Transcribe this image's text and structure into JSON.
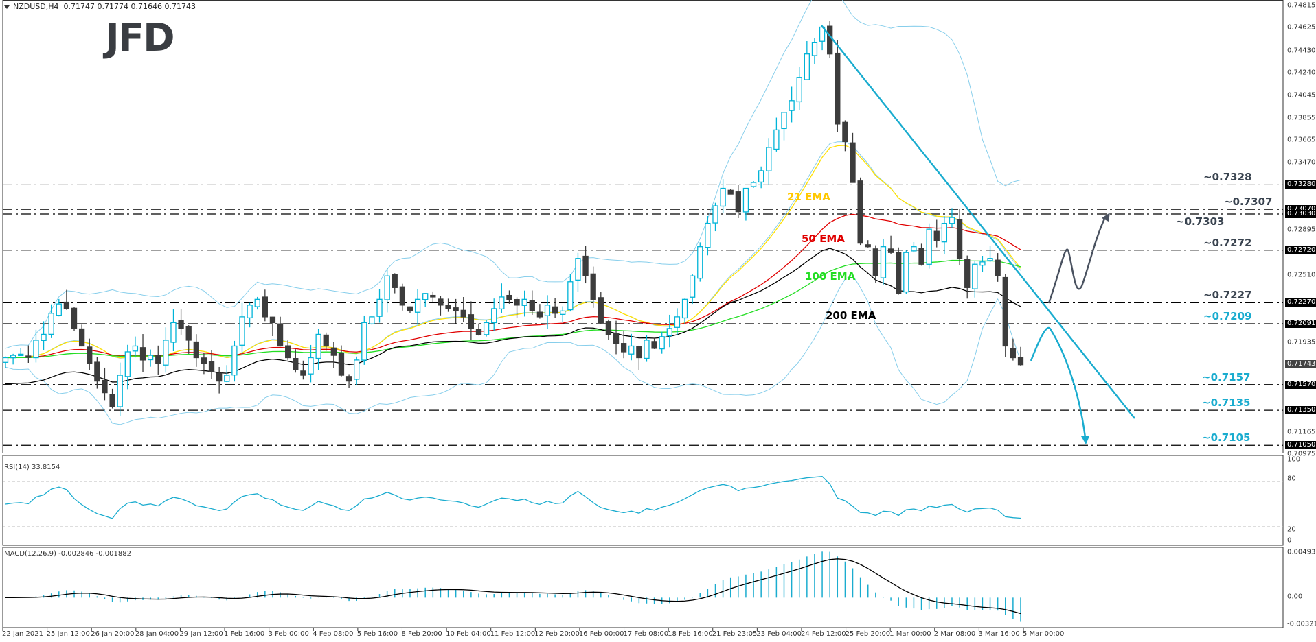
{
  "header": {
    "symbol": "NZDUSD,H4",
    "ohlc": "0.71747 0.71774 0.71646 0.71743"
  },
  "logo": "JFD",
  "colors": {
    "bull": "#00b4d8",
    "bear": "#3c3c3c",
    "bollinger": "#87ceeb",
    "ema21": "#ffe000",
    "ema50": "#e00000",
    "ema100": "#22dd22",
    "ema200": "#000000",
    "trendline": "#1aaccf",
    "level_dark": "#3a4450",
    "level_blue": "#1aaccf",
    "rsi": "#1aaccf",
    "macd_hist": "#1aaccf",
    "macd_signal": "#000000"
  },
  "indicators": {
    "rsi_label": "RSI(14) 33.8154",
    "macd_label": "MACD(12,26,9) -0.002846 -0.001882"
  },
  "ema_labels": {
    "ema21": "21 EMA",
    "ema50": "50 EMA",
    "ema100": "100 EMA",
    "ema200": "200 EMA"
  },
  "price_axis": {
    "ticks": [
      "0.74815",
      "0.74625",
      "0.74430",
      "0.74240",
      "0.74045",
      "0.73855",
      "0.73665",
      "0.73470",
      "0.72895",
      "0.72510",
      "0.71935",
      "0.71165",
      "0.70975"
    ],
    "tags": [
      "0.73280",
      "0.73070",
      "0.73030",
      "0.72720",
      "0.72270",
      "0.72091",
      "0.71570",
      "0.71350",
      "0.71050"
    ],
    "current": "0.71743"
  },
  "rsi_axis": [
    "100",
    "80",
    "20",
    "0"
  ],
  "macd_axis": [
    "0.004935",
    "0.00",
    "-0.003216"
  ],
  "time_axis": [
    "22 Jan 2021",
    "25 Jan 12:00",
    "26 Jan 20:00",
    "28 Jan 04:00",
    "29 Jan 12:00",
    "1 Feb 16:00",
    "3 Feb 00:00",
    "4 Feb 08:00",
    "5 Feb 16:00",
    "8 Feb 20:00",
    "10 Feb 04:00",
    "11 Feb 12:00",
    "12 Feb 20:00",
    "16 Feb 00:00",
    "17 Feb 08:00",
    "18 Feb 16:00",
    "21 Feb 23:05",
    "23 Feb 04:00",
    "24 Feb 12:00",
    "25 Feb 20:00",
    "1 Mar 00:00",
    "2 Mar 08:00",
    "3 Mar 16:00",
    "5 Mar 00:00"
  ],
  "levels": [
    {
      "label": "~0.7328",
      "price": 0.7328,
      "tone": "dark"
    },
    {
      "label": "~0.7307",
      "price": 0.7307,
      "tone": "dark"
    },
    {
      "label": "~0.7303",
      "price": 0.7303,
      "tone": "dark"
    },
    {
      "label": "~0.7272",
      "price": 0.7272,
      "tone": "dark"
    },
    {
      "label": "~0.7227",
      "price": 0.7227,
      "tone": "dark"
    },
    {
      "label": "~0.7209",
      "price": 0.72091,
      "tone": "blue"
    },
    {
      "label": "~0.7157",
      "price": 0.7157,
      "tone": "blue"
    },
    {
      "label": "~0.7135",
      "price": 0.7135,
      "tone": "blue"
    },
    {
      "label": "~0.7105",
      "price": 0.7105,
      "tone": "blue"
    }
  ],
  "chart_data": {
    "type": "candlestick",
    "title": "NZDUSD,H4",
    "ohlc_last": {
      "open": 0.71747,
      "high": 0.71774,
      "low": 0.71646,
      "close": 0.71743
    },
    "x_range": [
      "22 Jan 2021",
      "5 Mar 00:00"
    ],
    "ylim": [
      0.70975,
      0.74815
    ],
    "close_path": [
      0.718,
      0.7182,
      0.7183,
      0.7181,
      0.7195,
      0.72,
      0.7218,
      0.7226,
      0.7222,
      0.7205,
      0.719,
      0.7175,
      0.716,
      0.715,
      0.7138,
      0.7165,
      0.7185,
      0.719,
      0.7178,
      0.7182,
      0.7175,
      0.7195,
      0.721,
      0.7205,
      0.7195,
      0.718,
      0.7175,
      0.7168,
      0.716,
      0.7165,
      0.719,
      0.7215,
      0.7225,
      0.723,
      0.7215,
      0.721,
      0.719,
      0.718,
      0.717,
      0.7165,
      0.718,
      0.72,
      0.719,
      0.7182,
      0.7165,
      0.716,
      0.7178,
      0.721,
      0.7215,
      0.723,
      0.725,
      0.724,
      0.7225,
      0.722,
      0.723,
      0.7235,
      0.7232,
      0.7225,
      0.7222,
      0.722,
      0.7215,
      0.7205,
      0.72,
      0.721,
      0.7222,
      0.7232,
      0.723,
      0.7225,
      0.723,
      0.722,
      0.7215,
      0.7225,
      0.7218,
      0.722,
      0.7245,
      0.7265,
      0.725,
      0.723,
      0.721,
      0.72,
      0.7192,
      0.7185,
      0.719,
      0.718,
      0.7195,
      0.7188,
      0.7198,
      0.7205,
      0.7215,
      0.723,
      0.725,
      0.7275,
      0.7295,
      0.731,
      0.7325,
      0.732,
      0.7305,
      0.7325,
      0.733,
      0.734,
      0.736,
      0.7375,
      0.739,
      0.74,
      0.742,
      0.744,
      0.745,
      0.7463,
      0.744,
      0.738,
      0.7365,
      0.733,
      0.7278,
      0.7275,
      0.725,
      0.7275,
      0.727,
      0.7235,
      0.727,
      0.7275,
      0.726,
      0.729,
      0.728,
      0.7295,
      0.73,
      0.7265,
      0.724,
      0.726,
      0.7262,
      0.7265,
      0.725,
      0.719,
      0.718,
      0.7174
    ],
    "ema_lines": [
      "21 EMA",
      "50 EMA",
      "100 EMA",
      "200 EMA"
    ],
    "indicators": {
      "rsi": {
        "period": 14,
        "value": 33.8154,
        "levels": [
          80,
          20
        ],
        "range": [
          0,
          100
        ]
      },
      "macd": {
        "params": [
          12,
          26,
          9
        ],
        "main": -0.002846,
        "signal": -0.001882,
        "range": [
          -0.003216,
          0.004935
        ]
      }
    },
    "annotations": [
      "Downtrend line from 0.7463 high (24 Feb)",
      "Bullish scenario arrow toward ~0.7303",
      "Bearish scenario arrow toward ~0.7105"
    ]
  }
}
